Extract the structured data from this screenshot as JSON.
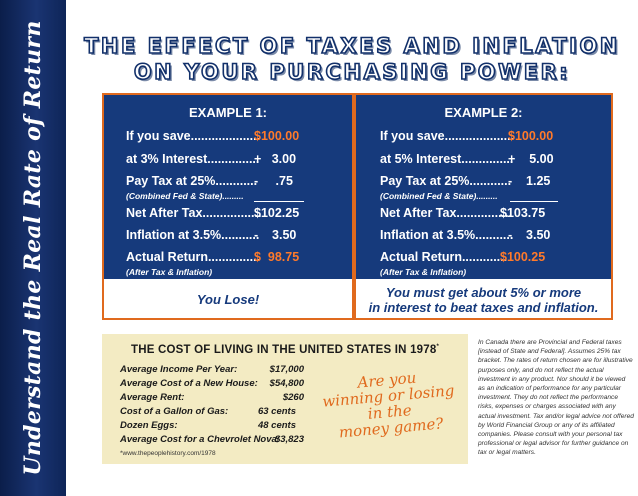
{
  "sidebar": {
    "text": "Understand the Real Rate of Return"
  },
  "title": {
    "line1": "THE EFFECT OF TAXES AND INFLATION",
    "line2": "ON YOUR PURCHASING POWER:"
  },
  "example1": {
    "heading": "EXAMPLE 1:",
    "save_label": "If you save....................",
    "save_value": "$100.00",
    "interest_label": "at 3% Interest...............",
    "interest_value": "+   3.00",
    "tax_label": "Pay Tax at 25%............",
    "tax_value": "-     .75",
    "tax_note": "(Combined Fed & State).........",
    "net_label": "Net After Tax.................",
    "net_value": "$102.25",
    "inflation_label": "Inflation at 3.5%...........",
    "inflation_value": "-    3.50",
    "actual_label": "Actual Return...............",
    "actual_value": "$  98.75",
    "actual_note": "(After Tax & Inflation)",
    "footer": "You Lose!"
  },
  "example2": {
    "heading": "EXAMPLE 2:",
    "save_label": "If you save....................",
    "save_value": "$100.00",
    "interest_label": "at 5% Interest...............",
    "interest_value": "+    5.00",
    "tax_label": "Pay Tax at 25%............",
    "tax_value": "-    1.25",
    "tax_note": "(Combined Fed & State).........",
    "net_label": "Net After Tax................",
    "net_value": "$103.75",
    "inflation_label": "Inflation at 3.5%...........",
    "inflation_value": "-    3.50",
    "actual_label": "Actual Return.............",
    "actual_value": "$100.25",
    "actual_note": "(After Tax & Inflation)",
    "footer_line1": "You must get about 5% or more",
    "footer_line2": "in interest to beat taxes and inflation."
  },
  "cost_of_living": {
    "title": "THE COST OF LIVING IN THE UNITED STATES IN 1978",
    "title_mark": "*",
    "rows": [
      {
        "label": "Average Income Per Year:",
        "value": "$17,000"
      },
      {
        "label": "Average Cost of a New House:",
        "value": "$54,800"
      },
      {
        "label": "Average Rent:",
        "value": "$260"
      },
      {
        "label": "Cost of a Gallon of Gas:",
        "value": "63 cents"
      },
      {
        "label": "Dozen Eggs:",
        "value": "48 cents"
      },
      {
        "label": "Average Cost for a Chevrolet Nova:",
        "value": "$3,823"
      }
    ],
    "source": "*www.thepeoplehistory.com/1978",
    "script_line1": "Are you",
    "script_line2": "winning or losing",
    "script_line3": "in the",
    "script_line4": "money game?"
  },
  "disclaimer": "In Canada there are Provincial and Federal taxes [instead of State and Federal]. Assumes 25% tax bracket. The rates of return chosen are for illustrative purposes only, and do not reflect the actual investment in any product. Nor should it be viewed as an indication of performance for any particular investment. They do not reflect the performance risks, expenses or charges associated with any actual investment. Tax and/or legal advice not offered by World Financial Group or any of its affiliated companies. Please consult with your personal tax professional or legal advisor for further guidance on tax or legal matters.",
  "colors": {
    "navy": "#163a7c",
    "orange": "#e06a1e",
    "cream": "#f3ebc3"
  }
}
